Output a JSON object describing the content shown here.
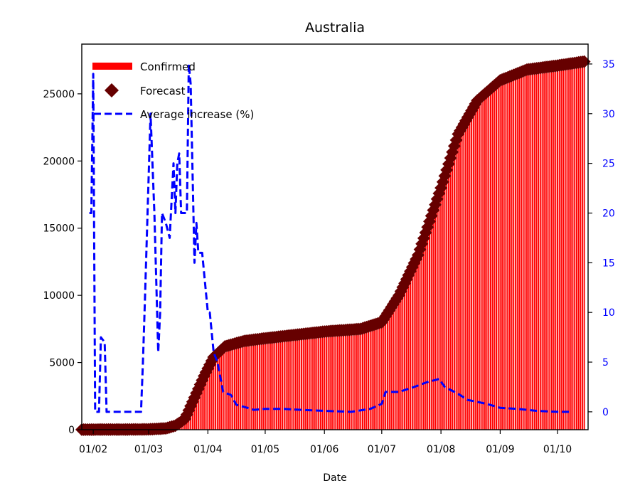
{
  "chart_data": {
    "type": "bar",
    "title": "Australia",
    "xlabel": "Date",
    "ylabel": "",
    "y2label": "",
    "x_tick_labels": [
      "01/02",
      "01/03",
      "01/04",
      "01/05",
      "01/06",
      "01/07",
      "01/08",
      "01/09",
      "01/10"
    ],
    "x_tick_dates": [
      "2020-02-01",
      "2020-03-01",
      "2020-04-01",
      "2020-05-01",
      "2020-06-01",
      "2020-07-01",
      "2020-08-01",
      "2020-09-01",
      "2020-10-01"
    ],
    "xlim": [
      "2020-01-26",
      "2020-10-17"
    ],
    "ylim": [
      0,
      28700
    ],
    "y_ticks": [
      0,
      5000,
      10000,
      15000,
      20000,
      25000
    ],
    "y2lim": [
      -1.8,
      37.0
    ],
    "y2_ticks": [
      0,
      5,
      10,
      15,
      20,
      25,
      30,
      35
    ],
    "legend_position": "top-left",
    "grid": false,
    "confirmed_keypoints": [
      [
        "2020-01-26",
        4
      ],
      [
        "2020-02-15",
        15
      ],
      [
        "2020-03-01",
        27
      ],
      [
        "2020-03-10",
        100
      ],
      [
        "2020-03-15",
        300
      ],
      [
        "2020-03-20",
        800
      ],
      [
        "2020-03-25",
        2400
      ],
      [
        "2020-03-30",
        4000
      ],
      [
        "2020-04-04",
        5400
      ],
      [
        "2020-04-10",
        6200
      ],
      [
        "2020-04-20",
        6600
      ],
      [
        "2020-05-01",
        6800
      ],
      [
        "2020-06-01",
        7300
      ],
      [
        "2020-06-20",
        7500
      ],
      [
        "2020-07-01",
        8000
      ],
      [
        "2020-07-10",
        10000
      ],
      [
        "2020-07-20",
        13000
      ],
      [
        "2020-08-01",
        18000
      ],
      [
        "2020-08-10",
        22000
      ],
      [
        "2020-08-20",
        24500
      ],
      [
        "2020-09-01",
        26000
      ],
      [
        "2020-09-15",
        26800
      ],
      [
        "2020-10-01",
        27100
      ],
      [
        "2020-10-15",
        27400
      ]
    ],
    "series": [
      {
        "name": "Confirmed",
        "kind": "bar",
        "color": "#ff0000"
      },
      {
        "name": "Forecast",
        "kind": "scatter",
        "marker": "diamond",
        "color": "#660000"
      },
      {
        "name": "Average increase (%)",
        "kind": "line",
        "axis": "right",
        "linestyle": "dashed",
        "color": "#0000ff",
        "points": [
          [
            "2020-01-30",
            20
          ],
          [
            "2020-01-31",
            20
          ],
          [
            "2020-02-01",
            34
          ],
          [
            "2020-02-02",
            0
          ],
          [
            "2020-02-04",
            0
          ],
          [
            "2020-02-05",
            7.5
          ],
          [
            "2020-02-07",
            7
          ],
          [
            "2020-02-08",
            0
          ],
          [
            "2020-02-20",
            0
          ],
          [
            "2020-02-26",
            0
          ],
          [
            "2020-02-27",
            5
          ],
          [
            "2020-02-28",
            11
          ],
          [
            "2020-03-02",
            30
          ],
          [
            "2020-03-04",
            20
          ],
          [
            "2020-03-06",
            6
          ],
          [
            "2020-03-07",
            10
          ],
          [
            "2020-03-08",
            20
          ],
          [
            "2020-03-10",
            19
          ],
          [
            "2020-03-12",
            17.5
          ],
          [
            "2020-03-14",
            25
          ],
          [
            "2020-03-15",
            20
          ],
          [
            "2020-03-16",
            25
          ],
          [
            "2020-03-17",
            26
          ],
          [
            "2020-03-18",
            20
          ],
          [
            "2020-03-21",
            20
          ],
          [
            "2020-03-22",
            35
          ],
          [
            "2020-03-23",
            33
          ],
          [
            "2020-03-25",
            15
          ],
          [
            "2020-03-26",
            19
          ],
          [
            "2020-03-27",
            16
          ],
          [
            "2020-03-29",
            16
          ],
          [
            "2020-04-01",
            10
          ],
          [
            "2020-04-02",
            10
          ],
          [
            "2020-04-04",
            6
          ],
          [
            "2020-04-06",
            5
          ],
          [
            "2020-04-09",
            2
          ],
          [
            "2020-04-13",
            1.7
          ],
          [
            "2020-04-16",
            0.7
          ],
          [
            "2020-04-20",
            0.5
          ],
          [
            "2020-04-25",
            0.2
          ],
          [
            "2020-05-01",
            0.3
          ],
          [
            "2020-05-10",
            0.3
          ],
          [
            "2020-05-20",
            0.2
          ],
          [
            "2020-06-01",
            0.1
          ],
          [
            "2020-06-15",
            0.0
          ],
          [
            "2020-06-25",
            0.3
          ],
          [
            "2020-07-01",
            0.8
          ],
          [
            "2020-07-03",
            2.0
          ],
          [
            "2020-07-10",
            2.0
          ],
          [
            "2020-07-18",
            2.5
          ],
          [
            "2020-07-25",
            3.0
          ],
          [
            "2020-07-31",
            3.3
          ],
          [
            "2020-08-03",
            2.5
          ],
          [
            "2020-08-10",
            1.8
          ],
          [
            "2020-08-15",
            1.2
          ],
          [
            "2020-08-25",
            0.8
          ],
          [
            "2020-09-01",
            0.4
          ],
          [
            "2020-09-10",
            0.3
          ],
          [
            "2020-09-20",
            0.1
          ],
          [
            "2020-10-01",
            0.0
          ],
          [
            "2020-10-08",
            0.0
          ]
        ]
      }
    ]
  }
}
